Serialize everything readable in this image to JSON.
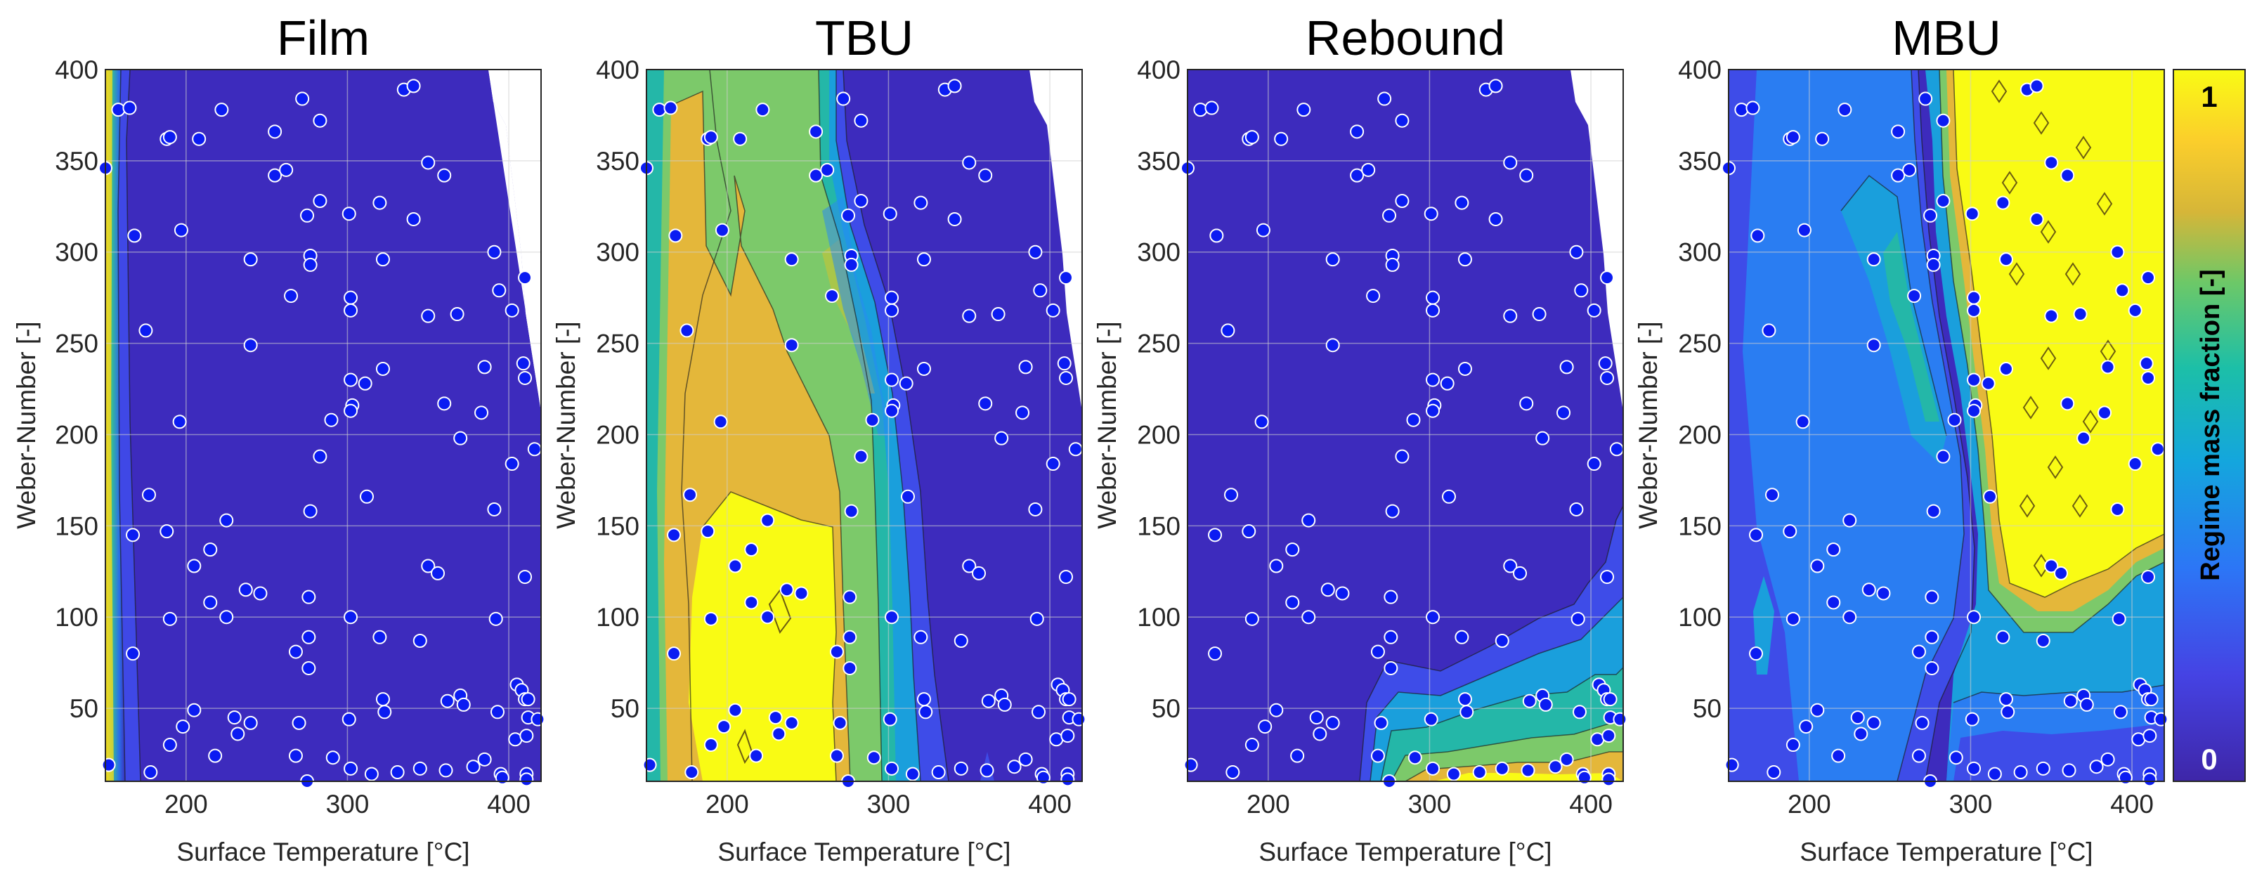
{
  "chart_data": [
    {
      "type": "heatmap",
      "title": "Film",
      "xlabel": "Surface Temperature [°C]",
      "ylabel": "Weber-Number [-]",
      "xlim": [
        150,
        420
      ],
      "ylim": [
        10,
        400
      ],
      "xticks": [
        "200",
        "300",
        "400"
      ],
      "yticks": [
        "50",
        "100",
        "150",
        "200",
        "250",
        "300",
        "350",
        "400"
      ],
      "description_regions": [
        {
          "x": [
            150,
            160
          ],
          "value": 0.8
        },
        {
          "x": [
            160,
            420
          ],
          "value": 0.0
        }
      ]
    },
    {
      "type": "heatmap",
      "title": "TBU",
      "xlabel": "Surface Temperature [°C]",
      "ylabel": "Weber-Number [-]",
      "xlim": [
        150,
        420
      ],
      "ylim": [
        10,
        400
      ],
      "xticks": [
        "200",
        "300",
        "400"
      ],
      "yticks": [
        "50",
        "100",
        "150",
        "200",
        "250",
        "300",
        "350",
        "400"
      ]
    },
    {
      "type": "heatmap",
      "title": "Rebound",
      "xlabel": "Surface Temperature [°C]",
      "ylabel": "Weber-Number [-]",
      "xlim": [
        150,
        420
      ],
      "ylim": [
        10,
        400
      ],
      "xticks": [
        "200",
        "300",
        "400"
      ],
      "yticks": [
        "50",
        "100",
        "150",
        "200",
        "250",
        "300",
        "350",
        "400"
      ]
    },
    {
      "type": "heatmap",
      "title": "MBU",
      "xlabel": "Surface Temperature [°C]",
      "ylabel": "Weber-Number [-]",
      "xlim": [
        150,
        420
      ],
      "ylim": [
        10,
        400
      ],
      "xticks": [
        "200",
        "300",
        "400"
      ],
      "yticks": [
        "50",
        "100",
        "150",
        "200",
        "250",
        "300",
        "350",
        "400"
      ]
    }
  ],
  "colorbar": {
    "label": "Regime mass fraction [-]",
    "max_label": "1",
    "min_label": "0",
    "range": [
      0,
      1
    ]
  },
  "sample_points": [
    [
      150,
      346
    ],
    [
      152,
      19
    ],
    [
      158,
      378
    ],
    [
      165,
      379
    ],
    [
      168,
      309
    ],
    [
      167,
      145
    ],
    [
      167,
      80
    ],
    [
      175,
      257
    ],
    [
      177,
      167
    ],
    [
      178,
      15
    ],
    [
      188,
      362
    ],
    [
      188,
      147
    ],
    [
      190,
      363
    ],
    [
      190,
      30
    ],
    [
      197,
      312
    ],
    [
      196,
      207
    ],
    [
      198,
      40
    ],
    [
      205,
      49
    ],
    [
      208,
      362
    ],
    [
      205,
      128
    ],
    [
      215,
      137
    ],
    [
      215,
      108
    ],
    [
      218,
      24
    ],
    [
      222,
      378
    ],
    [
      225,
      153
    ],
    [
      225,
      100
    ],
    [
      230,
      45
    ],
    [
      232,
      36
    ],
    [
      237,
      115
    ],
    [
      240,
      296
    ],
    [
      240,
      249
    ],
    [
      240,
      42
    ],
    [
      246,
      113
    ],
    [
      255,
      366
    ],
    [
      255,
      342
    ],
    [
      262,
      345
    ],
    [
      265,
      276
    ],
    [
      268,
      81
    ],
    [
      270,
      42
    ],
    [
      268,
      24
    ],
    [
      272,
      384
    ],
    [
      275,
      320
    ],
    [
      277,
      298
    ],
    [
      277,
      293
    ],
    [
      277,
      158
    ],
    [
      276,
      111
    ],
    [
      276,
      89
    ],
    [
      276,
      72
    ],
    [
      275,
      10
    ],
    [
      283,
      372
    ],
    [
      283,
      188
    ],
    [
      283,
      328
    ],
    [
      290,
      208
    ],
    [
      291,
      23
    ],
    [
      301,
      321
    ],
    [
      302,
      275
    ],
    [
      302,
      268
    ],
    [
      302,
      230
    ],
    [
      303,
      216
    ],
    [
      302,
      213
    ],
    [
      302,
      100
    ],
    [
      301,
      44
    ],
    [
      302,
      17
    ],
    [
      312,
      166
    ],
    [
      311,
      228
    ],
    [
      315,
      14
    ],
    [
      322,
      236
    ],
    [
      320,
      327
    ],
    [
      322,
      296
    ],
    [
      322,
      55
    ],
    [
      323,
      48
    ],
    [
      320,
      89
    ],
    [
      331,
      15
    ],
    [
      335,
      389
    ],
    [
      341,
      391
    ],
    [
      341,
      318
    ],
    [
      345,
      87
    ],
    [
      345,
      17
    ],
    [
      350,
      349
    ],
    [
      350,
      265
    ],
    [
      350,
      128
    ],
    [
      356,
      124
    ],
    [
      360,
      217
    ],
    [
      360,
      342
    ],
    [
      361,
      16
    ],
    [
      362,
      54
    ],
    [
      368,
      266
    ],
    [
      370,
      198
    ],
    [
      370,
      57
    ],
    [
      372,
      52
    ],
    [
      378,
      18
    ],
    [
      383,
      212
    ],
    [
      385,
      22
    ],
    [
      385,
      237
    ],
    [
      391,
      159
    ],
    [
      391,
      300
    ],
    [
      392,
      99
    ],
    [
      394,
      279
    ],
    [
      393,
      48
    ],
    [
      395,
      14
    ],
    [
      396,
      12
    ],
    [
      402,
      268
    ],
    [
      402,
      184
    ],
    [
      404,
      33
    ],
    [
      405,
      63
    ],
    [
      408,
      60
    ],
    [
      409,
      239
    ],
    [
      410,
      231
    ],
    [
      410,
      286
    ],
    [
      410,
      122
    ],
    [
      412,
      45
    ],
    [
      411,
      35
    ],
    [
      411,
      14
    ],
    [
      411,
      11
    ],
    [
      410,
      55
    ],
    [
      412,
      55
    ],
    [
      418,
      44
    ],
    [
      416,
      192
    ],
    [
      190,
      99
    ]
  ]
}
